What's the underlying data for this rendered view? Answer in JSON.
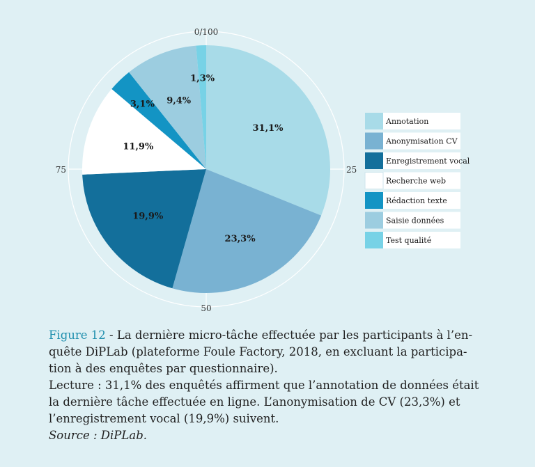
{
  "chart_data": {
    "type": "pie",
    "categories": [
      "Annotation",
      "Anonymisation CV",
      "Enregistrement vocal",
      "Recherche web",
      "Rédaction texte",
      "Saisie données",
      "Test qualité"
    ],
    "values": [
      31.1,
      23.3,
      19.9,
      11.9,
      3.1,
      9.4,
      1.3
    ],
    "data_labels": [
      "31,1%",
      "23,3%",
      "19,9%",
      "11,9%",
      "3,1%",
      "9,4%",
      "1,3%"
    ],
    "colors": [
      "#a8dbe8",
      "#79b2d2",
      "#136f9b",
      "#ffffff",
      "#1394c4",
      "#9ccde0",
      "#77d2e6"
    ],
    "radial_ticks": [
      "0/100",
      "25",
      "50",
      "75"
    ],
    "legend_placement": "right",
    "grid": "concentric circles and radial spokes"
  },
  "caption": {
    "figure_label": "Figure 12",
    "line1": " - La dernière micro-tâche effectuée par les participants à l’en-",
    "line2": "quête DiPLab (plateforme Foule Factory, 2018, en excluant la participa-",
    "line3": "tion à des enquêtes par questionnaire).",
    "line4": "Lecture : 31,1% des enquêtés affirment que l’annotation de données était",
    "line5": "la dernière tâche effectuée en ligne. L’anonymisation de CV (23,3%) et",
    "line6": "l’enregistrement vocal (19,9%) suivent.",
    "source": "Source : DiPLab."
  }
}
